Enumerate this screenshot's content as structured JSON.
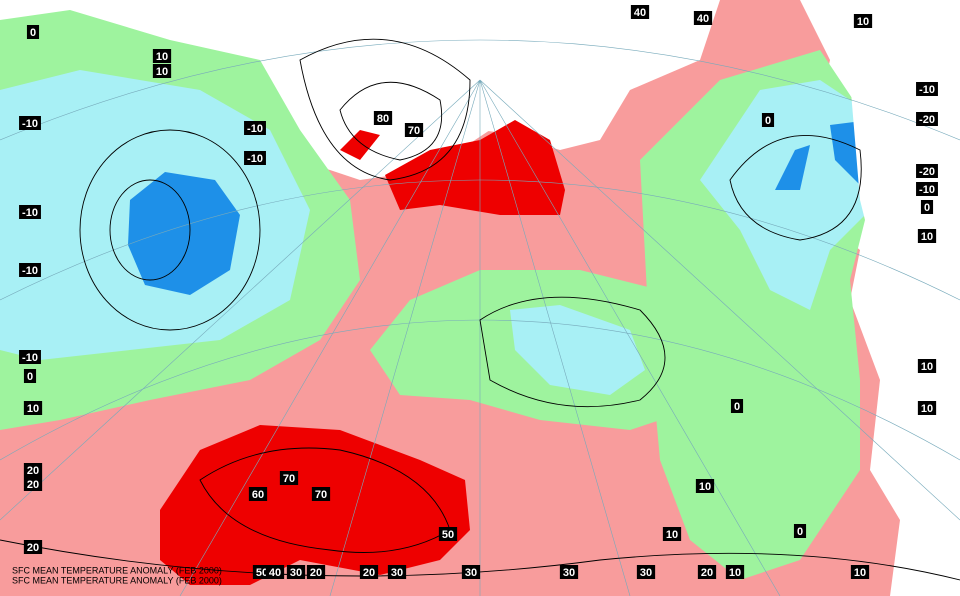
{
  "contour_labels": [
    "0",
    "10",
    "10",
    "-10",
    "-10",
    "-10",
    "-10",
    "-10",
    "-10",
    "0",
    "10",
    "80",
    "70",
    "40",
    "40",
    "10",
    "0",
    "-10",
    "-20",
    "-20",
    "-10",
    "0",
    "10",
    "10",
    "10",
    "0",
    "10",
    "10",
    "0",
    "20",
    "20",
    "20",
    "70",
    "60",
    "70",
    "50",
    "50",
    "40",
    "30",
    "20",
    "20",
    "30",
    "30",
    "30",
    "30",
    "20",
    "10",
    "10"
  ],
  "footer": [
    "SFC MEAN TEMPERATURE ANOMALY (FEB 2000)",
    "SFC MEAN TEMPERATURE ANOMALY (FEB 2000)"
  ]
}
